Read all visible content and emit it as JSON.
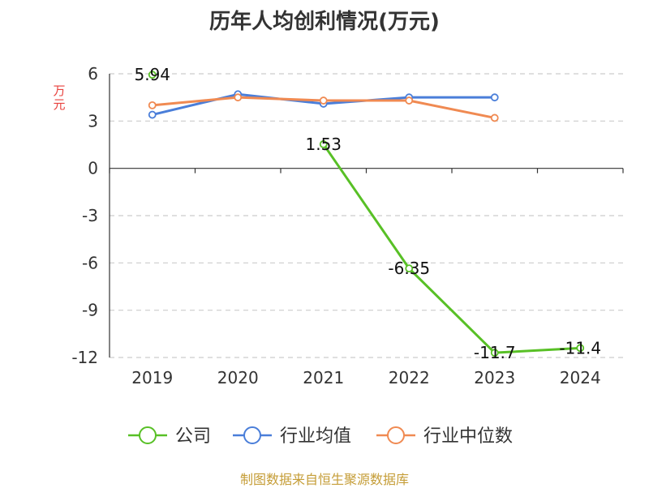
{
  "chart_data": {
    "type": "line",
    "title": "历年人均创利情况(万元)",
    "ylabel": "万元",
    "xlabel": "",
    "ylim": [
      -12,
      6
    ],
    "yticks": [
      6,
      3,
      0,
      -3,
      -6,
      -9,
      -12
    ],
    "categories": [
      "2019",
      "2020",
      "2021",
      "2022",
      "2023",
      "2024"
    ],
    "grid": true,
    "legend_position": "bottom",
    "series": [
      {
        "name": "公司",
        "color": "#58c026",
        "values": [
          5.94,
          null,
          1.53,
          -6.35,
          -11.7,
          -11.4
        ],
        "labels": [
          "5.94",
          "",
          "1.53",
          "-6.35",
          "-11.7",
          "-11.4"
        ]
      },
      {
        "name": "行业均值",
        "color": "#4a7ed9",
        "values": [
          3.4,
          4.7,
          4.1,
          4.5,
          4.5,
          null
        ]
      },
      {
        "name": "行业中位数",
        "color": "#f08a52",
        "values": [
          4.0,
          4.5,
          4.3,
          4.3,
          3.2,
          null
        ]
      }
    ]
  },
  "footer": "制图数据来自恒生聚源数据库"
}
